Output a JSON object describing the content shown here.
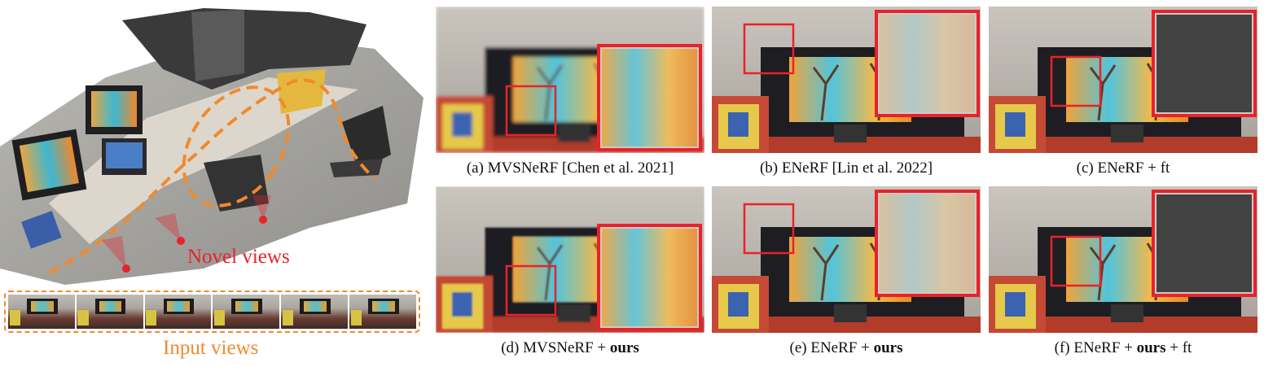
{
  "scene": {
    "novel_views_label": "Novel views",
    "input_views_label": "Input views",
    "input_view_count": 6
  },
  "panels": [
    {
      "id": "a",
      "caption_prefix": "(a) MVSNeRF [Chen et al. 2021]",
      "caption_bold": "",
      "caption_suffix": "",
      "quality": "blurry"
    },
    {
      "id": "b",
      "caption_prefix": "(b) ENeRF [Lin et al. 2022]",
      "caption_bold": "",
      "caption_suffix": "",
      "quality": "ghosted"
    },
    {
      "id": "c",
      "caption_prefix": "(c) ENeRF + ft",
      "caption_bold": "",
      "caption_suffix": "",
      "quality": "artifacts"
    },
    {
      "id": "d",
      "caption_prefix": "(d) MVSNeRF + ",
      "caption_bold": "ours",
      "caption_suffix": "",
      "quality": "improved"
    },
    {
      "id": "e",
      "caption_prefix": "(e) ENeRF + ",
      "caption_bold": "ours",
      "caption_suffix": "",
      "quality": "sharp"
    },
    {
      "id": "f",
      "caption_prefix": "(f) ENeRF + ",
      "caption_bold": "ours",
      "caption_suffix": " + ft",
      "quality": "sharp"
    }
  ],
  "colors": {
    "highlight_box": "#e8222b",
    "input_views": "#f08a2c",
    "novel_views": "#e8222b"
  }
}
